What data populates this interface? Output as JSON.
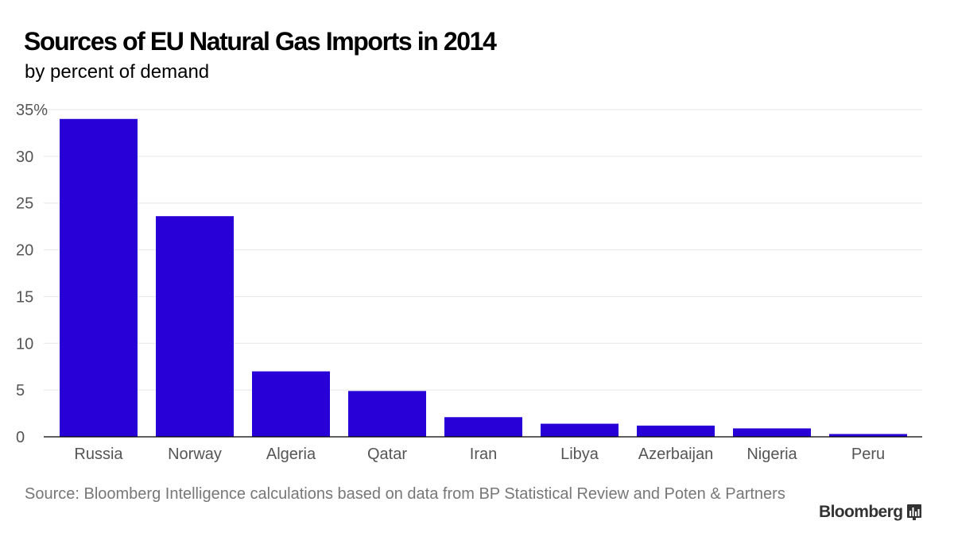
{
  "title": "Sources of EU Natural Gas Imports in 2014",
  "subtitle": "by percent of demand",
  "source": "Source: Bloomberg Intelligence calculations based on data from BP Statistical Review and Poten & Partners",
  "brand": "Bloomberg",
  "brand_icon": "bloomberg-chart-icon",
  "colors": {
    "bar": "#2800d7",
    "grid": "#e6e6e6",
    "axis": "#000000",
    "tick_text": "#555555"
  },
  "chart_data": {
    "type": "bar",
    "title": "Sources of EU Natural Gas Imports in 2014",
    "subtitle": "by percent of demand",
    "categories": [
      "Russia",
      "Norway",
      "Algeria",
      "Qatar",
      "Iran",
      "Libya",
      "Azerbaijan",
      "Nigeria",
      "Peru"
    ],
    "values": [
      34.0,
      23.6,
      7.0,
      4.9,
      2.1,
      1.4,
      1.2,
      0.9,
      0.3
    ],
    "ylim": [
      0,
      35
    ],
    "yticks": [
      0,
      5,
      10,
      15,
      20,
      25,
      30,
      35
    ],
    "ytick_labels": [
      "0",
      "5",
      "10",
      "15",
      "20",
      "25",
      "30",
      "35%"
    ],
    "xlabel": "",
    "ylabel": "",
    "grid": true,
    "legend": "none"
  }
}
